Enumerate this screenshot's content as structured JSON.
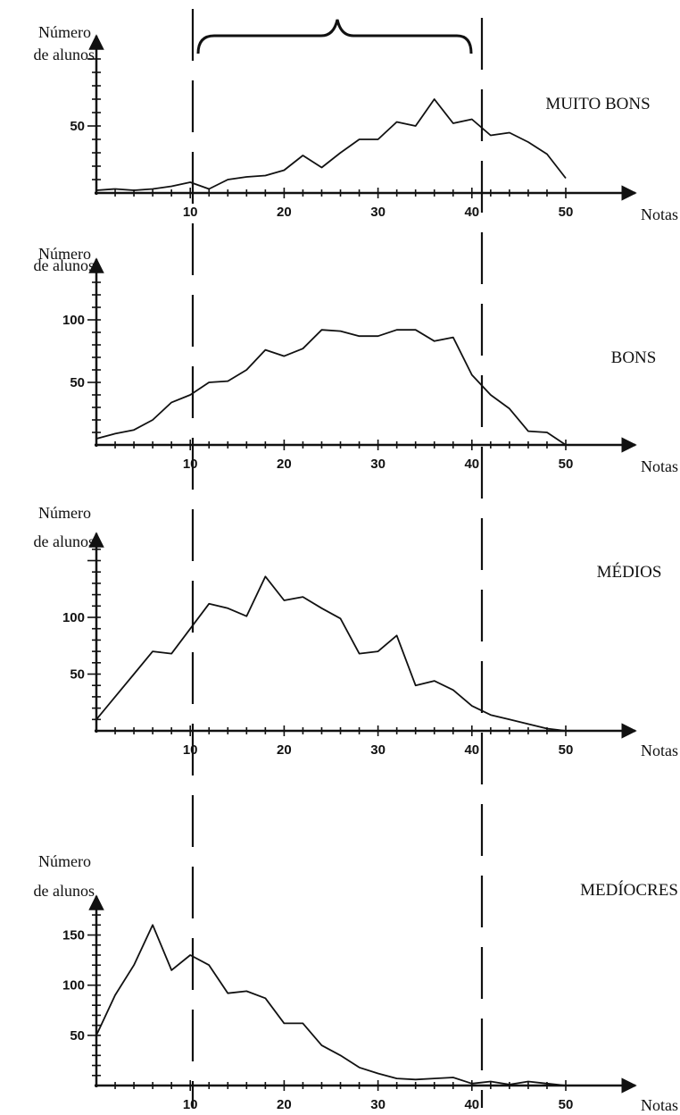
{
  "chart_data": [
    {
      "type": "line",
      "title": "MUITO BONS",
      "ylabel": "Número de alunos",
      "xlabel": "Notas",
      "xlim": [
        0,
        50
      ],
      "ylim": [
        0,
        75
      ],
      "x_ticks": [
        10,
        20,
        30,
        40,
        50
      ],
      "y_ticks": [
        50
      ],
      "grid": false,
      "x": [
        0,
        2,
        4,
        6,
        8,
        10,
        12,
        14,
        16,
        18,
        20,
        22,
        24,
        26,
        28,
        30,
        32,
        34,
        36,
        38,
        40,
        42,
        44,
        46,
        48,
        50
      ],
      "values": [
        2,
        3,
        2,
        3,
        5,
        8,
        3,
        10,
        12,
        13,
        17,
        28,
        19,
        30,
        40,
        40,
        53,
        50,
        70,
        52,
        55,
        43,
        45,
        38,
        29,
        11
      ]
    },
    {
      "type": "line",
      "title": "BONS",
      "ylabel": "Número de alunos",
      "xlabel": "Notas",
      "xlim": [
        0,
        50
      ],
      "ylim": [
        0,
        100
      ],
      "x_ticks": [
        10,
        20,
        30,
        40,
        50
      ],
      "y_ticks": [
        50,
        100
      ],
      "grid": false,
      "x": [
        0,
        2,
        4,
        6,
        8,
        10,
        12,
        14,
        16,
        18,
        20,
        22,
        24,
        26,
        28,
        30,
        32,
        34,
        36,
        38,
        40,
        42,
        44,
        46,
        48,
        50
      ],
      "values": [
        5,
        9,
        12,
        20,
        34,
        40,
        50,
        51,
        60,
        76,
        71,
        77,
        92,
        91,
        87,
        87,
        92,
        92,
        83,
        86,
        56,
        40,
        29,
        11,
        10,
        0
      ]
    },
    {
      "type": "line",
      "title": "MÉDIOS",
      "ylabel": "Número de alunos",
      "xlabel": "Notas",
      "xlim": [
        0,
        50
      ],
      "ylim": [
        0,
        150
      ],
      "x_ticks": [
        10,
        20,
        30,
        40,
        50
      ],
      "y_ticks": [
        50,
        100
      ],
      "grid": false,
      "x": [
        0,
        2,
        4,
        6,
        8,
        10,
        12,
        14,
        16,
        18,
        20,
        22,
        24,
        26,
        28,
        30,
        32,
        34,
        36,
        38,
        40,
        42,
        44,
        46,
        48,
        50
      ],
      "values": [
        10,
        30,
        50,
        70,
        68,
        90,
        112,
        108,
        101,
        136,
        115,
        118,
        108,
        99,
        68,
        70,
        84,
        40,
        44,
        36,
        22,
        14,
        10,
        6,
        2,
        0
      ]
    },
    {
      "type": "line",
      "title": "MEDÍOCRES",
      "ylabel": "Número de alunos",
      "xlabel": "Notas",
      "xlim": [
        0,
        50
      ],
      "ylim": [
        0,
        200
      ],
      "x_ticks": [
        10,
        20,
        30,
        40,
        50
      ],
      "y_ticks": [
        50,
        100,
        150
      ],
      "grid": false,
      "x": [
        0,
        2,
        4,
        6,
        8,
        10,
        12,
        14,
        16,
        18,
        20,
        22,
        24,
        26,
        28,
        30,
        32,
        34,
        36,
        38,
        40,
        42,
        44,
        46,
        48,
        50
      ],
      "values": [
        50,
        90,
        120,
        160,
        115,
        130,
        120,
        92,
        94,
        87,
        62,
        62,
        40,
        30,
        18,
        12,
        7,
        6,
        7,
        8,
        2,
        4,
        1,
        4,
        2,
        0
      ]
    }
  ]
}
